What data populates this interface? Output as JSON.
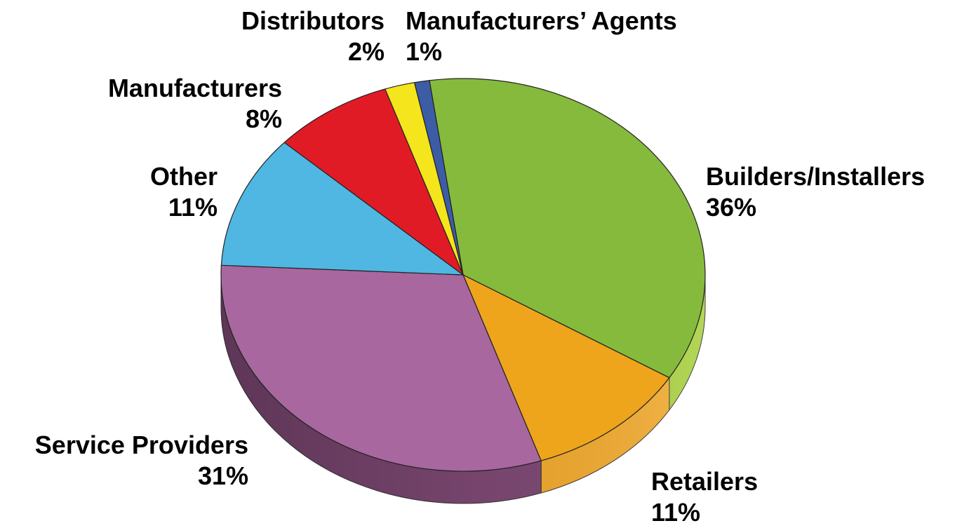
{
  "chart_data": {
    "type": "pie",
    "style": "3d",
    "slices": [
      {
        "label": "Builders/Installers",
        "value": 36,
        "value_label": "36%",
        "color": "#86ba3c",
        "side_color": "#a6cf3a"
      },
      {
        "label": "Retailers",
        "value": 11,
        "value_label": "11%",
        "color": "#eea51c",
        "side_color": "#f3aa2c"
      },
      {
        "label": "Service Providers",
        "value": 31,
        "value_label": "31%",
        "color": "#a8679f",
        "side_color": "#7d4873"
      },
      {
        "label": "Other",
        "value": 11,
        "value_label": "11%",
        "color": "#4fb7e2",
        "side_color": "#3b8fb4"
      },
      {
        "label": "Manufacturers",
        "value": 8,
        "value_label": "8%",
        "color": "#e11b25",
        "side_color": "#b5151d"
      },
      {
        "label": "Distributors",
        "value": 2,
        "value_label": "2%",
        "color": "#f4e51c",
        "side_color": "#c8bb12"
      },
      {
        "label": "Manufacturers’ Agents",
        "value": 1,
        "value_label": "1%",
        "color": "#3d5ca6",
        "side_color": "#2f4782"
      }
    ]
  }
}
